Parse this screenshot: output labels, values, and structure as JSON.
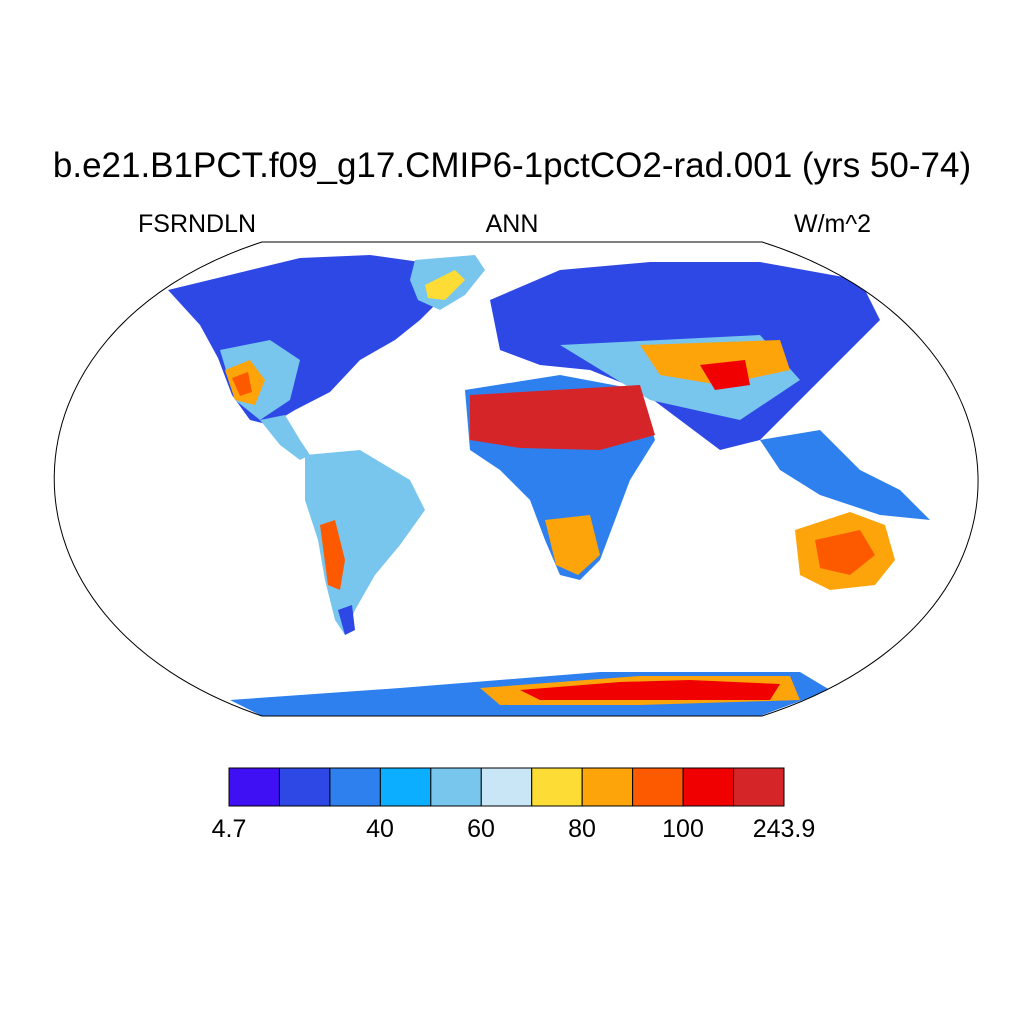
{
  "title": "b.e21.B1PCT.f09_g17.CMIP6-1pctCO2-rad.001 (yrs 50-74)",
  "subtitle_left": "FSRNDLN",
  "subtitle_center": "ANN",
  "subtitle_right": "W/m^2",
  "colorbar": {
    "colors": [
      "#4010f4",
      "#2e48e6",
      "#2d80ee",
      "#0cafff",
      "#78c5ee",
      "#c8e6f6",
      "#fddd35",
      "#fda40a",
      "#fd5a00",
      "#f10000",
      "#d52528"
    ],
    "tick_labels": [
      "4.7",
      "40",
      "60",
      "80",
      "100",
      "243.9"
    ]
  }
}
